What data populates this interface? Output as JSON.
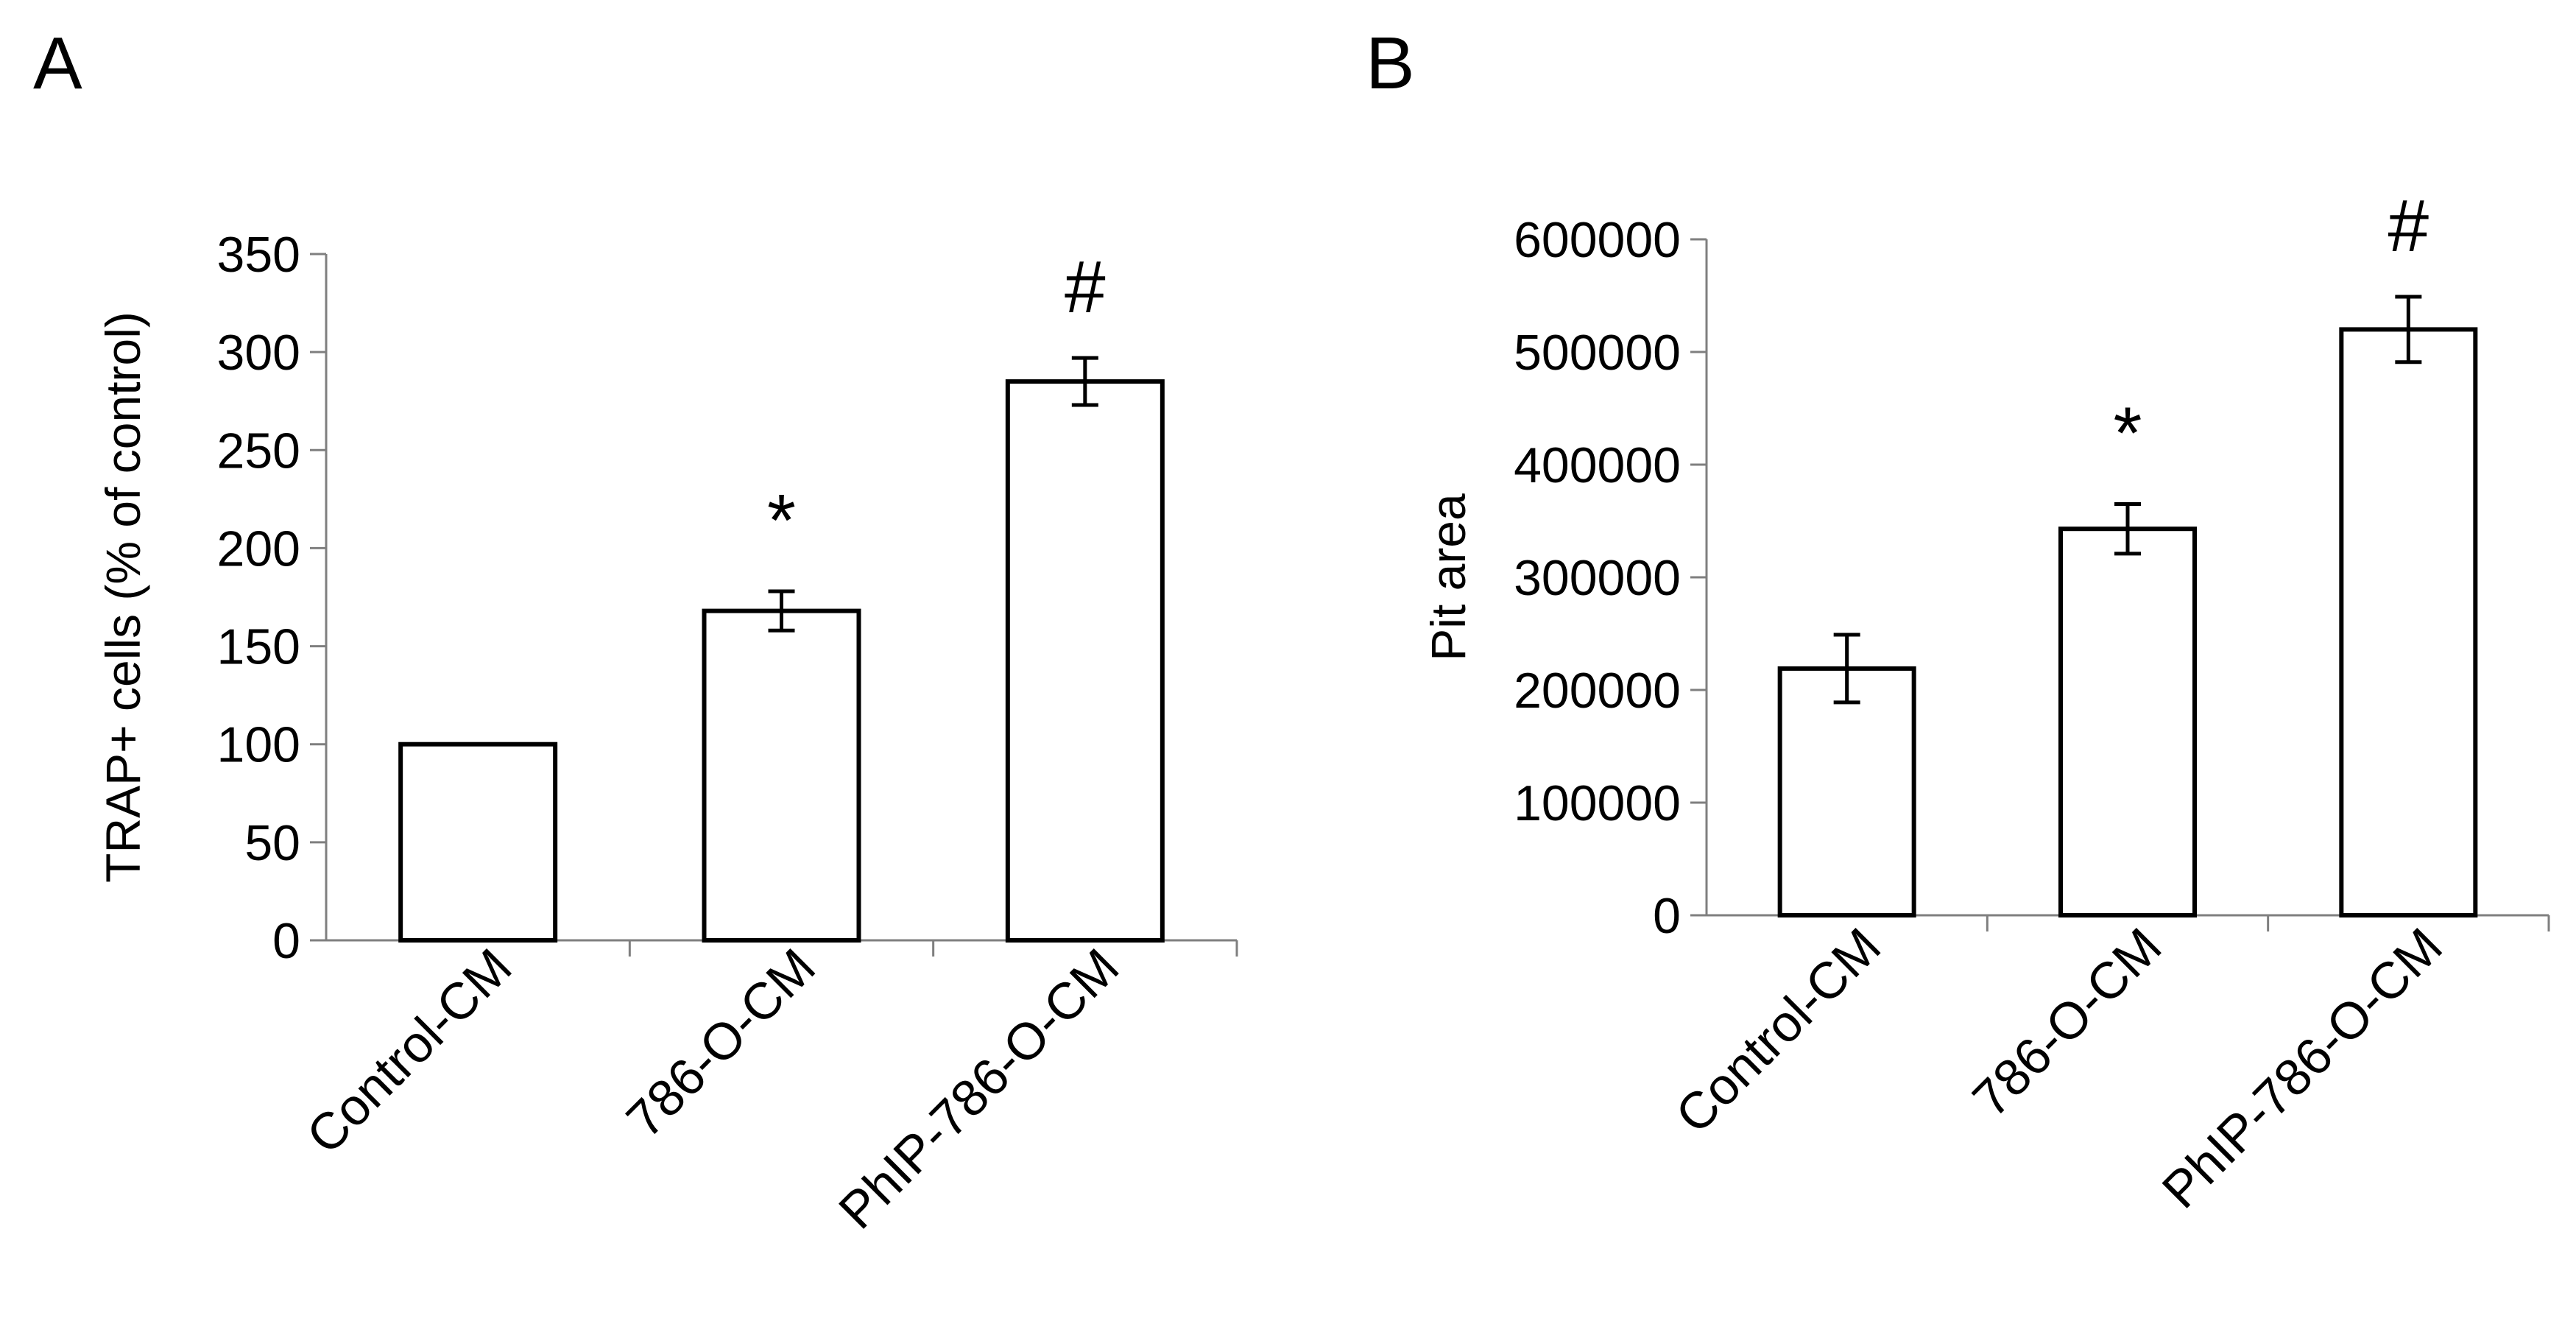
{
  "chart_data": [
    {
      "panel_label": "A",
      "type": "bar",
      "ylabel": "TRAP+ cells (% of control)",
      "xlabel": "",
      "ylim": [
        0,
        350
      ],
      "yticks": [
        "0",
        "50",
        "100",
        "150",
        "200",
        "250",
        "300",
        "350"
      ],
      "categories": [
        "Control-CM",
        "786-O-CM",
        "PhIP-786-O-CM"
      ],
      "values": [
        100,
        168,
        285
      ],
      "errors": [
        0,
        10,
        12
      ],
      "annotations": [
        "",
        "*",
        "#"
      ]
    },
    {
      "panel_label": "B",
      "type": "bar",
      "ylabel": "Pit area",
      "xlabel": "",
      "ylim": [
        0,
        600000
      ],
      "yticks": [
        "0",
        "100000",
        "200000",
        "300000",
        "400000",
        "500000",
        "600000"
      ],
      "categories": [
        "Control-CM",
        "786-O-CM",
        "PhIP-786-O-CM"
      ],
      "values": [
        219000,
        343000,
        520000
      ],
      "errors": [
        30000,
        22000,
        29000
      ],
      "annotations": [
        "",
        "*",
        "#"
      ]
    }
  ]
}
